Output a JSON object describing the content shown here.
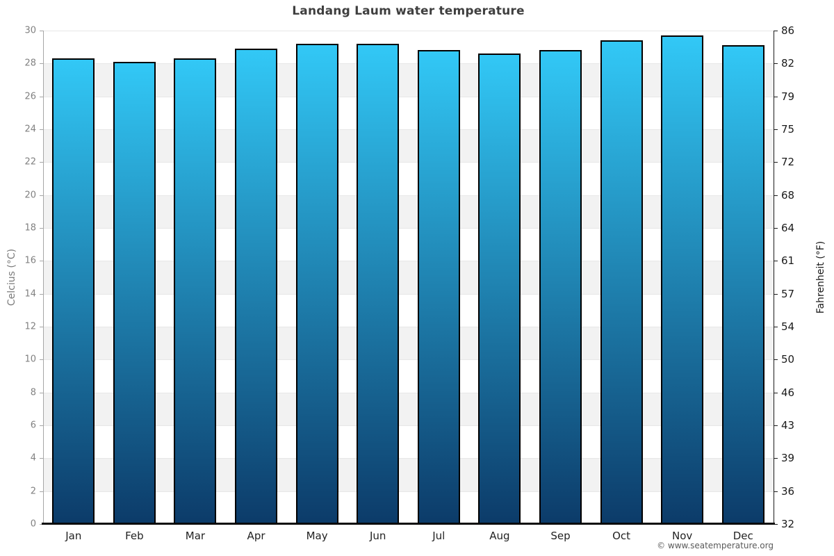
{
  "title": "Landang Laum water temperature",
  "copyright": "© www.seatemperature.org",
  "chart_data": {
    "type": "bar",
    "title": "Landang Laum water temperature",
    "categories": [
      "Jan",
      "Feb",
      "Mar",
      "Apr",
      "May",
      "Jun",
      "Jul",
      "Aug",
      "Sep",
      "Oct",
      "Nov",
      "Dec"
    ],
    "series": [
      {
        "name": "Water temperature (°C)",
        "values": [
          28.3,
          28.1,
          28.3,
          28.9,
          29.2,
          29.2,
          28.8,
          28.6,
          28.8,
          29.4,
          29.7,
          29.1
        ]
      }
    ],
    "xlabel": "",
    "ylabel_left": "Celcius (°C)",
    "ylabel_right": "Fahrenheit (°F)",
    "ylim": [
      0,
      30
    ],
    "yticks_celsius": [
      "30",
      "28",
      "26",
      "24",
      "22",
      "20",
      "18",
      "16",
      "14",
      "12",
      "10",
      "8",
      "6",
      "4",
      "2",
      "0"
    ],
    "yticks_fahrenheit": [
      "86",
      "82",
      "79",
      "75",
      "72",
      "68",
      "64",
      "61",
      "57",
      "54",
      "50",
      "46",
      "43",
      "39",
      "36",
      "32"
    ],
    "legend": "none",
    "grid": "alternating horizontal bands every 2°C",
    "colors": {
      "bar_gradient_top": "#32c8f6",
      "bar_gradient_bottom": "#0c3b69",
      "bar_border": "#000000",
      "band_gray": "#f2f2f2",
      "gridline": "#e7e7e7",
      "left_axis": "#a6a6a6",
      "right_axis": "#1a1a1a",
      "bottom_axis": "#0a0a0a",
      "title_text": "#3f3f3f",
      "left_tick_text": "#808080",
      "right_tick_text": "#1a1a1a",
      "month_text": "#222222",
      "copyright_text": "#5a5a5a"
    }
  }
}
